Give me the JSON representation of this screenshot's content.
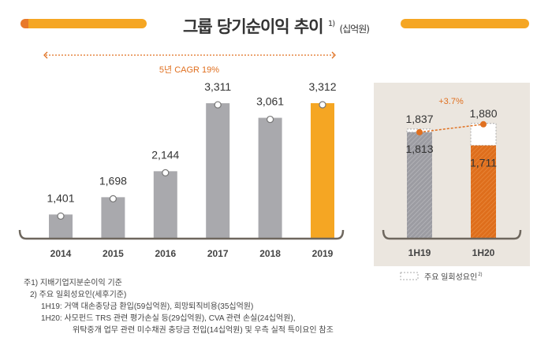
{
  "title": {
    "main": "그룹 당기순이익 추이",
    "sup": "1)",
    "unit": "(십억원)"
  },
  "colors": {
    "accent": "#f5a623",
    "orange": "#e07020",
    "gray": "#a9a9ad",
    "bracket": "#6e675e",
    "panel": "#ebe6df"
  },
  "chart_data": [
    {
      "type": "bar",
      "categories": [
        "2014",
        "2015",
        "2016",
        "2017",
        "2018",
        "2019"
      ],
      "values": [
        1401,
        1698,
        2144,
        3311,
        3061,
        3312
      ],
      "value_labels": [
        "1,401",
        "1,698",
        "2,144",
        "3,311",
        "3,061",
        "3,312"
      ],
      "highlight": "2019",
      "ylim": [
        1000,
        3500
      ],
      "annotation": "5년 CAGR 19%"
    },
    {
      "type": "bar",
      "categories": [
        "1H19",
        "1H20"
      ],
      "values": [
        1813,
        1711
      ],
      "totals": [
        1837,
        1880
      ],
      "value_labels": [
        "1,813",
        "1,711"
      ],
      "total_labels": [
        "1,837",
        "1,880"
      ],
      "growth_label": "+3.7%",
      "ylim": [
        1000,
        2000
      ],
      "legend": {
        "label": "주요 일회성요인",
        "sup": "2)",
        "placement": "bottom"
      }
    }
  ],
  "notes": [
    "주1) 지배기업지분순이익 기준",
    "2) 주요 일회성요인(세후기준)",
    "1H19: 거액 대손충당금 환입(59십억원), 희망퇴직비용(35십억원)",
    "1H20: 사모펀드 TRS 관련 평가손실 등(29십억원), CVA 관련 손실(24십억원),",
    "위탁중개 업무 관련 미수채권 충당금 전입(14십억원) 및 우측 실적 특이요인 참조"
  ]
}
